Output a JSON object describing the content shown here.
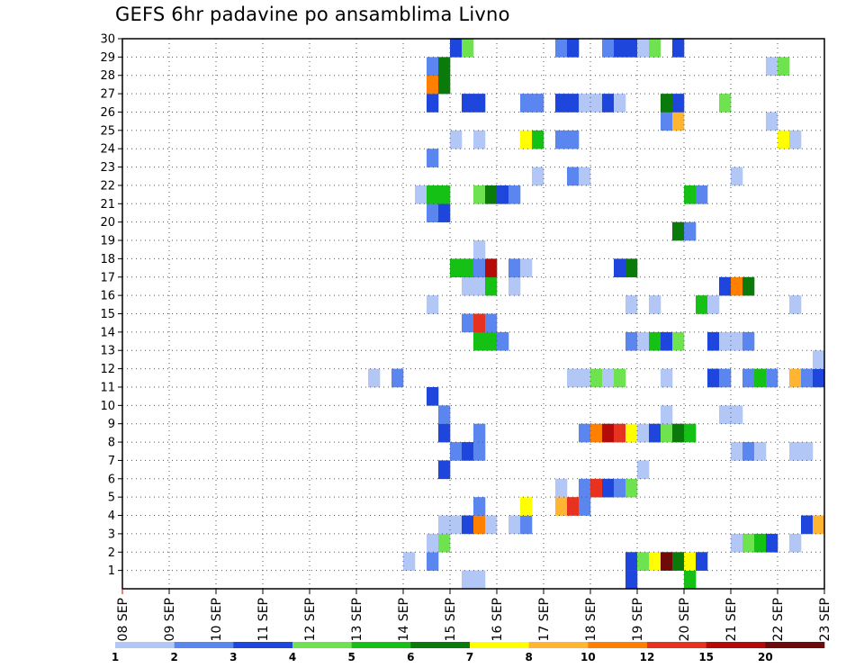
{
  "chart_data": {
    "type": "heatmap",
    "title": "GEFS 6hr padavine po ansamblima Livno",
    "xlabel": "",
    "ylabel": "",
    "x_ticks": [
      "08 SEP",
      "09 SEP",
      "10 SEP",
      "11 SEP",
      "12 SEP",
      "13 SEP",
      "14 SEP",
      "15 SEP",
      "16 SEP",
      "17 SEP",
      "18 SEP",
      "19 SEP",
      "20 SEP",
      "21 SEP",
      "22 SEP",
      "23 SEP"
    ],
    "x_range_days": [
      0,
      15
    ],
    "y_ticks": [
      "1",
      "2",
      "3",
      "4",
      "5",
      "6",
      "7",
      "8",
      "9",
      "10",
      "11",
      "12",
      "13",
      "14",
      "15",
      "16",
      "17",
      "18",
      "19",
      "20",
      "21",
      "22",
      "23",
      "24",
      "25",
      "26",
      "27",
      "28",
      "29",
      "30"
    ],
    "y_range": [
      0,
      30
    ],
    "grid": "dotted",
    "legend": {
      "placement": "bottom",
      "labels": [
        "1",
        "2",
        "3",
        "4",
        "5",
        "6",
        "7",
        "8",
        "10",
        "12",
        "15",
        "20"
      ],
      "colors": [
        "#b3c7f7",
        "#5b86ef",
        "#1e46dc",
        "#6fe34f",
        "#14c114",
        "#0a7a0a",
        "#ffff00",
        "#ffb432",
        "#ff7f00",
        "#e6321e",
        "#b40a0a",
        "#6e0a0a"
      ]
    },
    "series": [
      {
        "member": 0,
        "cells": [
          [
            7.25,
            "#b3c7f7"
          ],
          [
            7.5,
            "#b3c7f7"
          ],
          [
            10.75,
            "#1e46dc"
          ],
          [
            12.0,
            "#14c114"
          ]
        ]
      },
      {
        "member": 1,
        "cells": [
          [
            6.0,
            "#b3c7f7"
          ],
          [
            6.5,
            "#5b86ef"
          ],
          [
            10.75,
            "#1e46dc"
          ],
          [
            11.0,
            "#6fe34f"
          ],
          [
            11.25,
            "#ffff00"
          ],
          [
            11.5,
            "#6e0a0a"
          ],
          [
            11.75,
            "#0a7a0a"
          ],
          [
            12.0,
            "#ffff00"
          ],
          [
            12.25,
            "#1e46dc"
          ]
        ]
      },
      {
        "member": 2,
        "cells": [
          [
            6.5,
            "#b3c7f7"
          ],
          [
            6.75,
            "#6fe34f"
          ],
          [
            13.0,
            "#b3c7f7"
          ],
          [
            13.25,
            "#6fe34f"
          ],
          [
            13.5,
            "#14c114"
          ],
          [
            13.75,
            "#1e46dc"
          ],
          [
            14.25,
            "#b3c7f7"
          ]
        ]
      },
      {
        "member": 3,
        "cells": [
          [
            6.75,
            "#b3c7f7"
          ],
          [
            7.0,
            "#b3c7f7"
          ],
          [
            7.25,
            "#1e46dc"
          ],
          [
            7.5,
            "#ff7f00"
          ],
          [
            7.75,
            "#b3c7f7"
          ],
          [
            8.25,
            "#b3c7f7"
          ],
          [
            8.5,
            "#5b86ef"
          ],
          [
            14.5,
            "#1e46dc"
          ],
          [
            14.75,
            "#ffb432"
          ]
        ]
      },
      {
        "member": 4,
        "cells": [
          [
            7.5,
            "#5b86ef"
          ],
          [
            8.5,
            "#ffff00"
          ],
          [
            9.25,
            "#ffb432"
          ],
          [
            9.5,
            "#e6321e"
          ],
          [
            9.75,
            "#5b86ef"
          ]
        ]
      },
      {
        "member": 5,
        "cells": [
          [
            9.25,
            "#b3c7f7"
          ],
          [
            9.75,
            "#5b86ef"
          ],
          [
            10.0,
            "#e6321e"
          ],
          [
            10.25,
            "#1e46dc"
          ],
          [
            10.5,
            "#5b86ef"
          ],
          [
            10.75,
            "#6fe34f"
          ]
        ]
      },
      {
        "member": 6,
        "cells": [
          [
            6.75,
            "#1e46dc"
          ],
          [
            11.0,
            "#b3c7f7"
          ]
        ]
      },
      {
        "member": 7,
        "cells": [
          [
            7.0,
            "#5b86ef"
          ],
          [
            7.25,
            "#1e46dc"
          ],
          [
            7.5,
            "#5b86ef"
          ],
          [
            13.0,
            "#b3c7f7"
          ],
          [
            13.25,
            "#5b86ef"
          ],
          [
            13.5,
            "#b3c7f7"
          ],
          [
            14.25,
            "#b3c7f7"
          ],
          [
            14.5,
            "#b3c7f7"
          ]
        ]
      },
      {
        "member": 8,
        "cells": [
          [
            6.75,
            "#1e46dc"
          ],
          [
            7.5,
            "#5b86ef"
          ],
          [
            9.75,
            "#5b86ef"
          ],
          [
            10.0,
            "#ff7f00"
          ],
          [
            10.25,
            "#b40a0a"
          ],
          [
            10.5,
            "#e6321e"
          ],
          [
            10.75,
            "#ffff00"
          ],
          [
            11.0,
            "#b3c7f7"
          ],
          [
            11.25,
            "#1e46dc"
          ],
          [
            11.5,
            "#6fe34f"
          ],
          [
            11.75,
            "#0a7a0a"
          ],
          [
            12.0,
            "#14c114"
          ]
        ]
      },
      {
        "member": 9,
        "cells": [
          [
            6.75,
            "#5b86ef"
          ],
          [
            11.5,
            "#b3c7f7"
          ],
          [
            12.75,
            "#b3c7f7"
          ],
          [
            13.0,
            "#b3c7f7"
          ]
        ]
      },
      {
        "member": 10,
        "cells": [
          [
            6.5,
            "#1e46dc"
          ]
        ]
      },
      {
        "member": 11,
        "cells": [
          [
            5.25,
            "#b3c7f7"
          ],
          [
            5.75,
            "#5b86ef"
          ],
          [
            9.5,
            "#b3c7f7"
          ],
          [
            9.75,
            "#b3c7f7"
          ],
          [
            10.0,
            "#6fe34f"
          ],
          [
            10.25,
            "#b3c7f7"
          ],
          [
            10.5,
            "#6fe34f"
          ],
          [
            11.5,
            "#b3c7f7"
          ],
          [
            12.5,
            "#1e46dc"
          ],
          [
            12.75,
            "#5b86ef"
          ],
          [
            13.25,
            "#5b86ef"
          ],
          [
            13.5,
            "#14c114"
          ],
          [
            13.75,
            "#5b86ef"
          ],
          [
            14.25,
            "#ffb432"
          ],
          [
            14.5,
            "#5b86ef"
          ],
          [
            14.75,
            "#1e46dc"
          ]
        ]
      },
      {
        "member": 12,
        "cells": [
          [
            14.75,
            "#b3c7f7"
          ]
        ]
      },
      {
        "member": 13,
        "cells": [
          [
            7.5,
            "#14c114"
          ],
          [
            7.75,
            "#14c114"
          ],
          [
            8.0,
            "#5b86ef"
          ],
          [
            10.75,
            "#5b86ef"
          ],
          [
            11.0,
            "#b3c7f7"
          ],
          [
            11.25,
            "#14c114"
          ],
          [
            11.5,
            "#1e46dc"
          ],
          [
            11.75,
            "#6fe34f"
          ],
          [
            12.5,
            "#1e46dc"
          ],
          [
            12.75,
            "#b3c7f7"
          ],
          [
            13.0,
            "#b3c7f7"
          ],
          [
            13.25,
            "#5b86ef"
          ]
        ]
      },
      {
        "member": 14,
        "cells": [
          [
            7.25,
            "#5b86ef"
          ],
          [
            7.5,
            "#e6321e"
          ],
          [
            7.75,
            "#5b86ef"
          ]
        ]
      },
      {
        "member": 15,
        "cells": [
          [
            6.5,
            "#b3c7f7"
          ],
          [
            10.75,
            "#b3c7f7"
          ],
          [
            11.25,
            "#b3c7f7"
          ],
          [
            12.25,
            "#14c114"
          ],
          [
            12.5,
            "#b3c7f7"
          ],
          [
            14.25,
            "#b3c7f7"
          ]
        ]
      },
      {
        "member": 16,
        "cells": [
          [
            7.25,
            "#b3c7f7"
          ],
          [
            7.5,
            "#b3c7f7"
          ],
          [
            7.75,
            "#14c114"
          ],
          [
            8.25,
            "#b3c7f7"
          ],
          [
            12.75,
            "#1e46dc"
          ],
          [
            13.0,
            "#ff7f00"
          ],
          [
            13.25,
            "#0a7a0a"
          ]
        ]
      },
      {
        "member": 17,
        "cells": [
          [
            7.0,
            "#14c114"
          ],
          [
            7.25,
            "#14c114"
          ],
          [
            7.5,
            "#5b86ef"
          ],
          [
            7.75,
            "#b40a0a"
          ],
          [
            8.25,
            "#5b86ef"
          ],
          [
            8.5,
            "#b3c7f7"
          ],
          [
            10.5,
            "#1e46dc"
          ],
          [
            10.75,
            "#0a7a0a"
          ]
        ]
      },
      {
        "member": 18,
        "cells": [
          [
            7.5,
            "#b3c7f7"
          ]
        ]
      },
      {
        "member": 19,
        "cells": [
          [
            11.75,
            "#0a7a0a"
          ],
          [
            12.0,
            "#5b86ef"
          ]
        ]
      },
      {
        "member": 20,
        "cells": [
          [
            6.5,
            "#5b86ef"
          ],
          [
            6.75,
            "#1e46dc"
          ]
        ]
      },
      {
        "member": 21,
        "cells": [
          [
            6.25,
            "#b3c7f7"
          ],
          [
            6.5,
            "#14c114"
          ],
          [
            6.75,
            "#14c114"
          ],
          [
            7.5,
            "#6fe34f"
          ],
          [
            7.75,
            "#0a7a0a"
          ],
          [
            8.0,
            "#1e46dc"
          ],
          [
            8.25,
            "#5b86ef"
          ],
          [
            12.0,
            "#14c114"
          ],
          [
            12.25,
            "#5b86ef"
          ]
        ]
      },
      {
        "member": 22,
        "cells": [
          [
            8.75,
            "#b3c7f7"
          ],
          [
            9.5,
            "#5b86ef"
          ],
          [
            9.75,
            "#b3c7f7"
          ],
          [
            13.0,
            "#b3c7f7"
          ]
        ]
      },
      {
        "member": 23,
        "cells": [
          [
            6.5,
            "#5b86ef"
          ]
        ]
      },
      {
        "member": 24,
        "cells": [
          [
            7.0,
            "#b3c7f7"
          ],
          [
            7.5,
            "#b3c7f7"
          ],
          [
            8.5,
            "#ffff00"
          ],
          [
            8.75,
            "#14c114"
          ],
          [
            9.25,
            "#5b86ef"
          ],
          [
            9.5,
            "#5b86ef"
          ],
          [
            14.0,
            "#ffff00"
          ],
          [
            14.25,
            "#b3c7f7"
          ]
        ]
      },
      {
        "member": 25,
        "cells": [
          [
            11.5,
            "#5b86ef"
          ],
          [
            11.75,
            "#ffb432"
          ],
          [
            13.75,
            "#b3c7f7"
          ]
        ]
      },
      {
        "member": 26,
        "cells": [
          [
            6.5,
            "#1e46dc"
          ],
          [
            7.25,
            "#1e46dc"
          ],
          [
            7.5,
            "#1e46dc"
          ],
          [
            8.5,
            "#5b86ef"
          ],
          [
            8.75,
            "#5b86ef"
          ],
          [
            9.25,
            "#1e46dc"
          ],
          [
            9.5,
            "#1e46dc"
          ],
          [
            9.75,
            "#b3c7f7"
          ],
          [
            10.0,
            "#b3c7f7"
          ],
          [
            10.25,
            "#1e46dc"
          ],
          [
            10.5,
            "#b3c7f7"
          ],
          [
            11.5,
            "#0a7a0a"
          ],
          [
            11.75,
            "#1e46dc"
          ],
          [
            12.75,
            "#6fe34f"
          ]
        ]
      },
      {
        "member": 27,
        "cells": [
          [
            6.5,
            "#ff7f00"
          ],
          [
            6.75,
            "#0a7a0a"
          ]
        ]
      },
      {
        "member": 28,
        "cells": [
          [
            6.5,
            "#5b86ef"
          ],
          [
            6.75,
            "#0a7a0a"
          ],
          [
            13.75,
            "#b3c7f7"
          ],
          [
            14.0,
            "#6fe34f"
          ]
        ]
      },
      {
        "member": 29,
        "cells": [
          [
            7.0,
            "#1e46dc"
          ],
          [
            7.25,
            "#6fe34f"
          ],
          [
            9.25,
            "#5b86ef"
          ],
          [
            9.5,
            "#1e46dc"
          ],
          [
            10.25,
            "#5b86ef"
          ],
          [
            10.5,
            "#1e46dc"
          ],
          [
            10.75,
            "#1e46dc"
          ],
          [
            11.0,
            "#b3c7f7"
          ],
          [
            11.25,
            "#6fe34f"
          ],
          [
            11.75,
            "#1e46dc"
          ]
        ]
      }
    ]
  }
}
